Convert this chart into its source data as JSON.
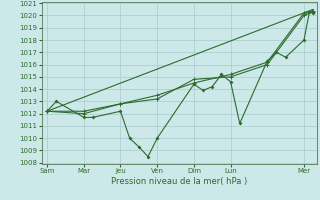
{
  "xlabel": "Pression niveau de la mer( hPa )",
  "ylim": [
    1008,
    1021
  ],
  "yticks": [
    1008,
    1009,
    1010,
    1011,
    1012,
    1013,
    1014,
    1015,
    1016,
    1017,
    1018,
    1019,
    1020,
    1021
  ],
  "xtick_labels": [
    "Sam",
    "Mar",
    "Jeu",
    "Ven",
    "Dim",
    "Lun",
    "Mer"
  ],
  "xtick_pos": [
    0,
    2,
    4,
    6,
    8,
    10,
    14
  ],
  "bg_color": "#cce8e8",
  "grid_color": "#a8cccc",
  "line_color": "#2d6b2d",
  "xlim": [
    -0.3,
    14.7
  ],
  "line1_x": [
    0,
    0.5,
    2,
    2.5,
    4,
    4.5,
    5,
    5.5,
    6,
    8,
    8.5,
    9,
    9.5,
    10,
    10.5,
    12,
    12.5,
    13,
    14,
    14.3,
    14.5
  ],
  "line1_y": [
    1012.2,
    1013.0,
    1011.7,
    1011.7,
    1012.2,
    1010.0,
    1009.3,
    1008.5,
    1010.0,
    1014.4,
    1013.9,
    1014.2,
    1015.2,
    1014.6,
    1011.2,
    1016.3,
    1017.0,
    1016.6,
    1018.0,
    1020.3,
    1020.2
  ],
  "line2_x": [
    0,
    2,
    4,
    6,
    8,
    10,
    12,
    14,
    14.5
  ],
  "line2_y": [
    1012.2,
    1012.2,
    1012.8,
    1013.5,
    1014.5,
    1015.2,
    1016.2,
    1020.2,
    1020.4
  ],
  "line3_x": [
    0,
    2,
    4,
    6,
    8,
    10,
    12,
    14,
    14.5
  ],
  "line3_y": [
    1012.2,
    1012.0,
    1012.8,
    1013.2,
    1014.8,
    1015.0,
    1016.0,
    1020.0,
    1020.3
  ],
  "line4_x": [
    0,
    14.5
  ],
  "line4_y": [
    1012.2,
    1020.5
  ]
}
